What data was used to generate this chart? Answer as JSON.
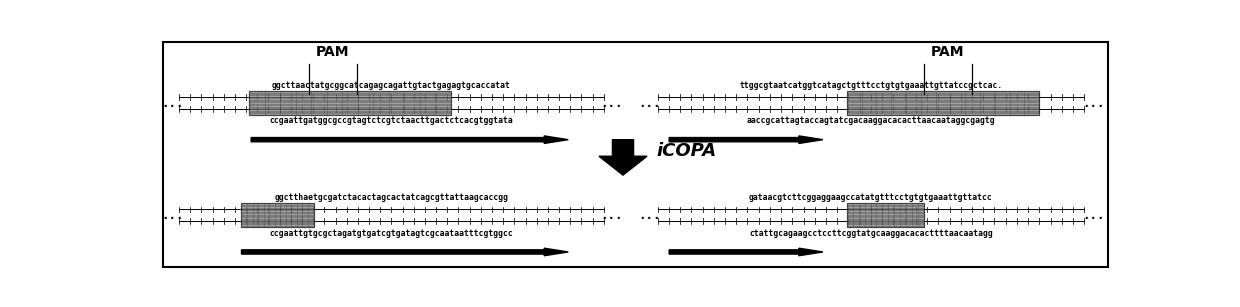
{
  "bg_color": "#ffffff",
  "border_color": "#000000",
  "fig_width": 12.4,
  "fig_height": 3.07,
  "dpi": 100,
  "top_left_seq_top": "ggcttaactatgcggcatcagagcagattgtactgagagtgcaccatat",
  "top_left_seq_bot": "ccgaattgatggcgccgtagtctcgtctaacttgactctcacgtggtata",
  "top_right_seq_top": "ttggcgtaatcatggtcatagctgtttcctgtgtgaaattgttatccgctcac.",
  "top_right_seq_bot": "aaccgcattagtaccagtatcgacaaggacacacttaacaataggcgagtg",
  "bot_left_seq_top": "ggctthaetgcgatctacactagcactatcagcgttattaagcaccgg",
  "bot_left_seq_bot": "ccgaattgtgcgctagatgtgatcgtgatagtcgcaataatttcgtggcc",
  "bot_right_seq_top": "gataacgtcttcggaggaagccatatgtttcctgtgtgaaattgttatcc",
  "bot_right_seq_bot": "ctattgcagaagcctccttcggtatgcaaggacacacttttaacaatagg",
  "seq_fontsize": 5.8,
  "seq_color": "#000000",
  "mono_family": "monospace",
  "pam_fontsize": 10,
  "line_color": "#000000",
  "tick_color": "#000000",
  "icopa_fontsize": 13,
  "icopa_text": "iCOPA",
  "guide_arrow_color": "#000000"
}
